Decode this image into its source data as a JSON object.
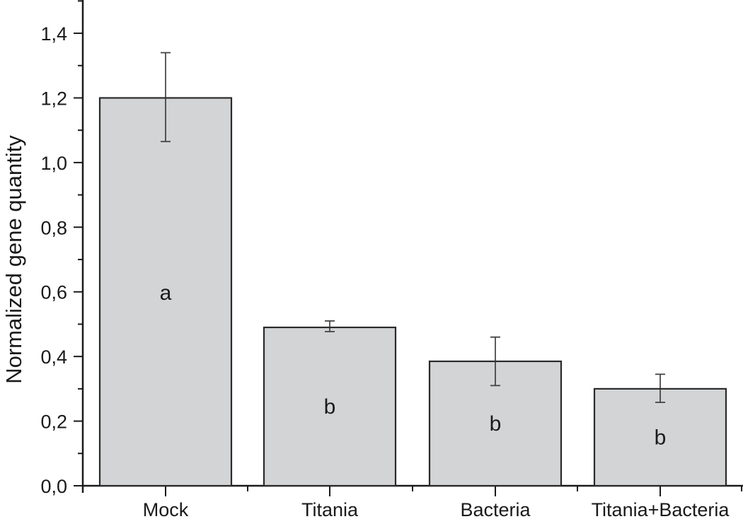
{
  "chart_data": {
    "type": "bar",
    "title": "",
    "xlabel": "",
    "ylabel": "Normalized gene quantity",
    "ylim": [
      0,
      1.5
    ],
    "yticks": [
      0.0,
      0.2,
      0.4,
      0.6,
      0.8,
      1.0,
      1.2,
      1.4
    ],
    "ytick_labels": [
      "0,0",
      "0,2",
      "0,4",
      "0,6",
      "0,8",
      "1,0",
      "1,2",
      "1,4"
    ],
    "categories": [
      "Mock",
      "Titania",
      "Bacteria",
      "Titania+Bacteria"
    ],
    "values": [
      1.2,
      0.49,
      0.385,
      0.3
    ],
    "error_upper": [
      1.34,
      0.51,
      0.46,
      0.345
    ],
    "error_lower": [
      1.065,
      0.477,
      0.31,
      0.258
    ],
    "significance_letters": [
      "a",
      "b",
      "b",
      "b"
    ],
    "bar_color": "#d3d4d6",
    "bar_edge_color": "#2a2a2a",
    "grid": false,
    "legend": null
  }
}
